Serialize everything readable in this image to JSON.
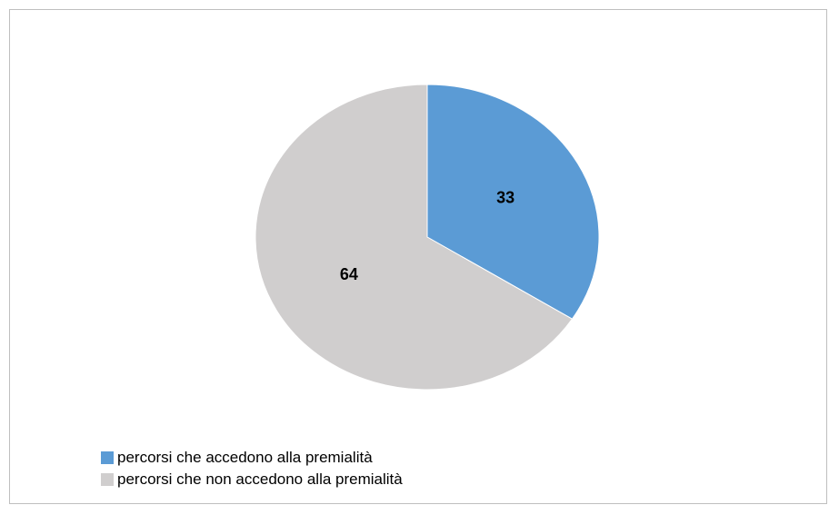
{
  "chart_data": {
    "type": "pie",
    "title": "",
    "slices": [
      {
        "label": "percorsi che accedono alla premialità",
        "value": 33,
        "color": "#5b9bd5"
      },
      {
        "label": "percorsi che non accedono alla premialità",
        "value": 64,
        "color": "#d0cece"
      }
    ],
    "data_labels": [
      "33",
      "64"
    ],
    "legend_position": "bottom-left",
    "start_angle": "12 o'clock, clockwise"
  }
}
